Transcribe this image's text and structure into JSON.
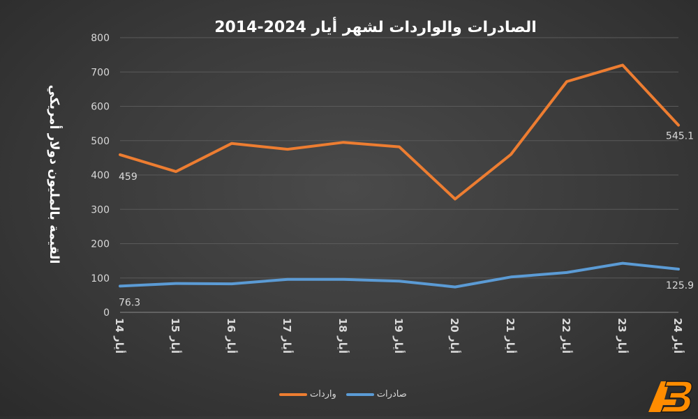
{
  "chart_data": {
    "type": "line",
    "title": "الصادرات والواردات لشهر أيار 2024-2014",
    "ylabel": "القيمة بالمليون دولار أمريكي",
    "xlabel": "",
    "ylim": [
      0,
      800
    ],
    "yticks": [
      0,
      100,
      200,
      300,
      400,
      500,
      600,
      700,
      800
    ],
    "grid": true,
    "legend_position": "bottom",
    "categories": [
      "أيار 14",
      "أيار 15",
      "أيار 16",
      "أيار 17",
      "أيار 18",
      "أيار 19",
      "أيار 20",
      "أيار 21",
      "أيار 22",
      "أيار 23",
      "أيار 24"
    ],
    "series": [
      {
        "name": "واردات",
        "color": "#ed7d31",
        "values": [
          459,
          410,
          492,
          475,
          495,
          482,
          330,
          460,
          672,
          720,
          545.1
        ],
        "data_labels": [
          {
            "index": 0,
            "text": "459"
          },
          {
            "index": 10,
            "text": "545.1"
          }
        ]
      },
      {
        "name": "صادرات",
        "color": "#5b9bd5",
        "values": [
          76.3,
          84,
          83,
          96,
          96,
          91,
          74,
          103,
          116,
          143,
          125.9
        ],
        "data_labels": [
          {
            "index": 0,
            "text": "76.3"
          },
          {
            "index": 10,
            "text": "125.9"
          }
        ]
      }
    ]
  },
  "legend": {
    "imports_label": "واردات",
    "exports_label": "صادرات"
  },
  "logo": {
    "icon": "ab-logo-icon",
    "primary_color": "#ff8c00",
    "secondary_color": "#1a1a1a"
  }
}
